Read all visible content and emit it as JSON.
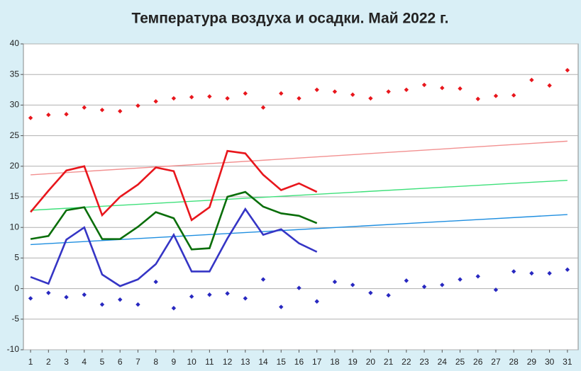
{
  "chart_data": {
    "type": "line",
    "title": "Температура воздуха и осадки. Май 2022 г.",
    "x": [
      1,
      2,
      3,
      4,
      5,
      6,
      7,
      8,
      9,
      10,
      11,
      12,
      13,
      14,
      15,
      16,
      17,
      18,
      19,
      20,
      21,
      22,
      23,
      24,
      25,
      26,
      27,
      28,
      29,
      30,
      31
    ],
    "xlim": [
      0.6,
      31.6
    ],
    "xticks": [
      1,
      2,
      3,
      4,
      5,
      6,
      7,
      8,
      9,
      10,
      11,
      12,
      13,
      14,
      15,
      16,
      17,
      18,
      19,
      20,
      21,
      22,
      23,
      24,
      25,
      26,
      27,
      28,
      29,
      30,
      31
    ],
    "ylim": [
      -10,
      40
    ],
    "yticks": [
      -10,
      -5,
      0,
      5,
      10,
      15,
      20,
      25,
      30,
      35,
      40
    ],
    "grid": true,
    "series": [
      {
        "style": "markers",
        "color": "#e8161c",
        "values": [
          27.9,
          28.4,
          28.5,
          29.6,
          29.2,
          29.0,
          29.9,
          30.6,
          31.1,
          31.3,
          31.4,
          31.1,
          31.9,
          29.6,
          31.9,
          31.1,
          32.5,
          32.2,
          31.7,
          31.1,
          32.2,
          32.5,
          33.3,
          32.8,
          32.7,
          31.0,
          31.5,
          31.6,
          34.1,
          33.2,
          35.7
        ]
      },
      {
        "style": "markers",
        "color": "#2828c0",
        "values": [
          -1.6,
          -0.7,
          -1.4,
          -1.0,
          -2.6,
          -1.8,
          -2.6,
          1.1,
          -3.2,
          -1.3,
          -1.0,
          -0.8,
          -1.6,
          1.5,
          -3.0,
          0.1,
          -2.1,
          1.1,
          0.6,
          -0.7,
          -1.1,
          1.3,
          0.3,
          0.6,
          1.5,
          2.0,
          -0.2,
          2.8,
          2.5,
          2.5,
          3.1
        ]
      },
      {
        "style": "thin",
        "color": "#f29090",
        "x": [
          1,
          31
        ],
        "values": [
          18.6,
          24.1
        ]
      },
      {
        "style": "thin",
        "color": "#3ee07a",
        "x": [
          1,
          31
        ],
        "values": [
          12.8,
          17.7
        ]
      },
      {
        "style": "thin",
        "color": "#1e8ee0",
        "x": [
          1,
          31
        ],
        "values": [
          7.2,
          12.1
        ]
      },
      {
        "style": "line",
        "color": "#e8161c",
        "values": [
          12.5,
          16.0,
          19.3,
          20.0,
          12.0,
          15.0,
          17.0,
          19.8,
          19.2,
          11.2,
          13.3,
          22.5,
          22.1,
          18.6,
          16.1,
          17.2,
          15.8,
          null,
          null,
          null,
          null,
          null,
          null,
          null,
          null,
          null,
          null,
          null,
          null,
          null,
          null
        ]
      },
      {
        "style": "line",
        "color": "#0a6e0a",
        "values": [
          8.1,
          8.6,
          12.8,
          13.3,
          8.1,
          8.1,
          10.1,
          12.5,
          11.5,
          6.4,
          6.6,
          15.0,
          15.8,
          13.4,
          12.3,
          11.9,
          10.7,
          null,
          null,
          null,
          null,
          null,
          null,
          null,
          null,
          null,
          null,
          null,
          null,
          null,
          null
        ]
      },
      {
        "style": "line",
        "color": "#3535c5",
        "values": [
          1.9,
          0.8,
          8.0,
          10.0,
          2.3,
          0.4,
          1.5,
          4.0,
          8.8,
          2.8,
          2.8,
          8.2,
          13.0,
          8.8,
          9.7,
          7.4,
          6.0,
          null,
          null,
          null,
          null,
          null,
          null,
          null,
          null,
          null,
          null,
          null,
          null,
          null,
          null
        ]
      }
    ]
  }
}
